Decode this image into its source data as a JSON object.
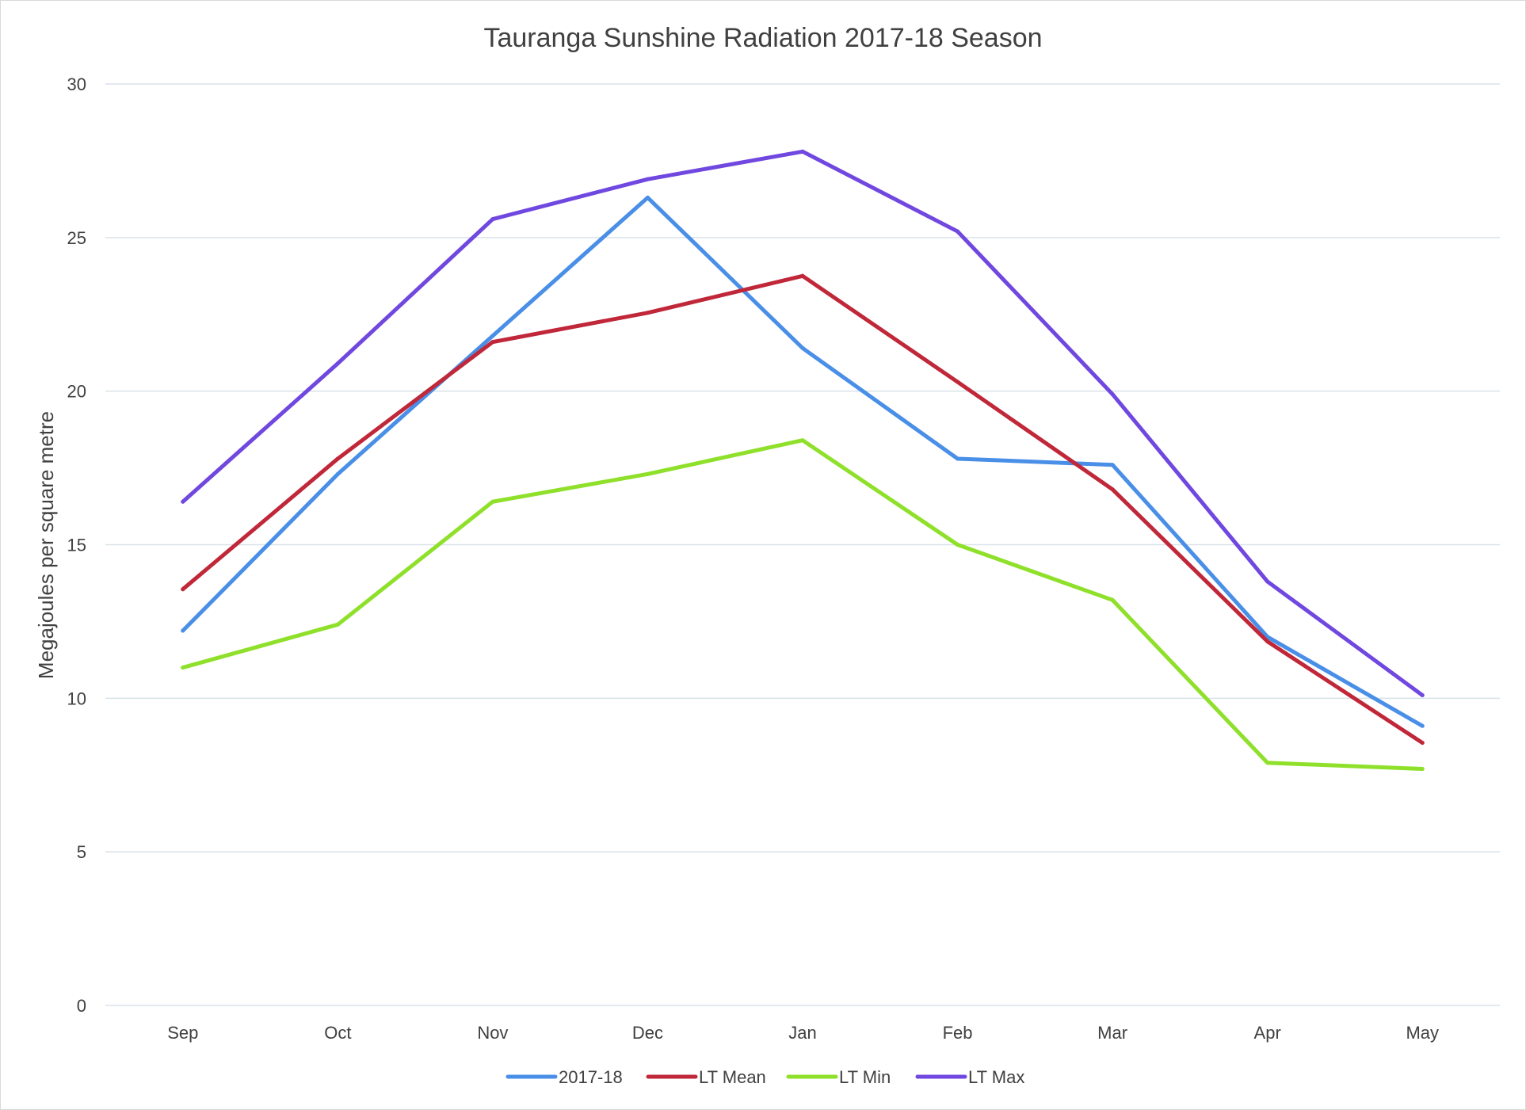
{
  "chart_data": {
    "type": "line",
    "title": "Tauranga Sunshine Radiation 2017-18 Season",
    "xlabel": "",
    "ylabel": "Megajoules per square metre",
    "ylim": [
      0,
      30
    ],
    "yticks": [
      "0",
      "5",
      "10",
      "15",
      "20",
      "25",
      "30"
    ],
    "grid": true,
    "legend_position": "bottom",
    "categories": [
      "Sep",
      "Oct",
      "Nov",
      "Dec",
      "Jan",
      "Feb",
      "Mar",
      "Apr",
      "May"
    ],
    "series": [
      {
        "name": "2017-18",
        "color": "#4a8fe7",
        "values": [
          12.2,
          17.3,
          21.8,
          26.3,
          21.4,
          17.8,
          17.6,
          12.0,
          9.1
        ]
      },
      {
        "name": "LT Mean",
        "color": "#c0283a",
        "values": [
          13.55,
          17.8,
          21.6,
          22.55,
          23.75,
          20.3,
          16.8,
          11.85,
          8.55
        ]
      },
      {
        "name": "LT Min",
        "color": "#8fe02a",
        "values": [
          11.0,
          12.4,
          16.4,
          17.3,
          18.4,
          15.0,
          13.2,
          7.9,
          7.7
        ]
      },
      {
        "name": "LT Max",
        "color": "#7048e0",
        "values": [
          16.4,
          20.9,
          25.6,
          26.9,
          27.8,
          25.2,
          19.9,
          13.8,
          10.1
        ]
      }
    ]
  }
}
